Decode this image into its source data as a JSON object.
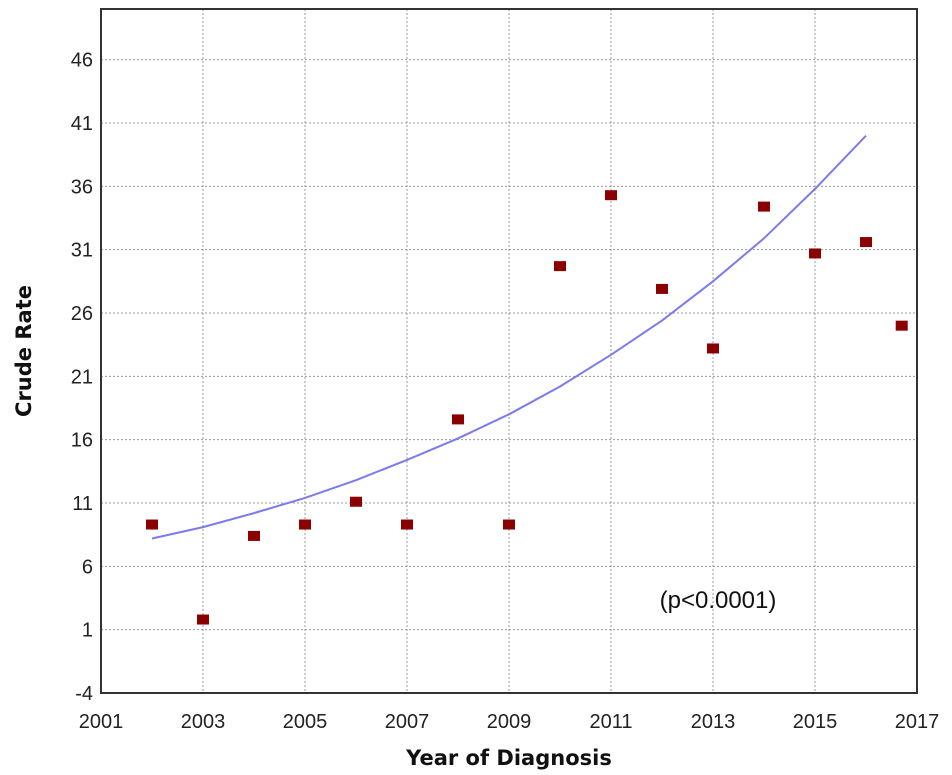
{
  "chart_data": {
    "type": "scatter",
    "title": "",
    "xlabel": "Year of Diagnosis",
    "ylabel": "Crude Rate",
    "xlim": [
      2001,
      2017
    ],
    "ylim": [
      -4,
      50
    ],
    "x_ticks": [
      2001,
      2003,
      2005,
      2007,
      2009,
      2011,
      2013,
      2015,
      2017
    ],
    "y_ticks": [
      -4,
      1,
      6,
      11,
      16,
      21,
      26,
      31,
      36,
      41,
      46
    ],
    "grid": true,
    "legend": "none",
    "annotation": "(p<0.0001)",
    "series": [
      {
        "type": "scatter",
        "color": "#8b0000",
        "x": [
          2002,
          2003,
          2004,
          2005,
          2006,
          2007,
          2008,
          2009,
          2010,
          2011,
          2012,
          2013,
          2014,
          2015,
          2016,
          2016.7
        ],
        "y": [
          9.3,
          1.8,
          8.4,
          9.3,
          11.1,
          9.3,
          17.6,
          9.3,
          29.7,
          35.3,
          27.9,
          23.2,
          34.4,
          30.7,
          31.6,
          25.0
        ]
      },
      {
        "type": "line",
        "color": "#7b7bee",
        "x": [
          2002,
          2003,
          2004,
          2005,
          2006,
          2007,
          2008,
          2009,
          2010,
          2011,
          2012,
          2013,
          2014,
          2015,
          2016
        ],
        "y": [
          8.2,
          9.1,
          10.2,
          11.4,
          12.8,
          14.4,
          16.1,
          18.0,
          20.2,
          22.7,
          25.4,
          28.5,
          31.9,
          35.8,
          40.0
        ]
      }
    ]
  }
}
